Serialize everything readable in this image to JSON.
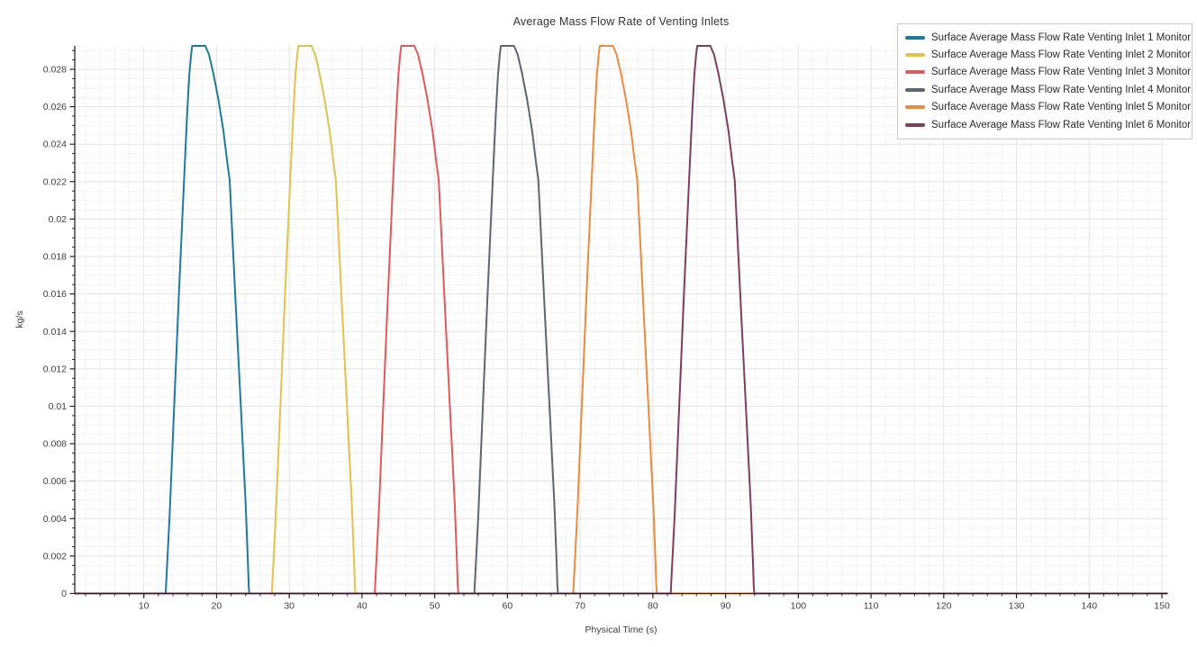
{
  "title": "Average Mass Flow Rate of Venting Inlets",
  "chart_data": {
    "type": "line",
    "title": "Average Mass Flow Rate of Venting Inlets",
    "xlabel": "Physical Time (s)",
    "ylabel": "kg/s",
    "xlim": [
      0.5,
      150.8
    ],
    "ylim": [
      0,
      0.02925
    ],
    "grid": true,
    "legend_position": "top-right",
    "x_major_ticks": [
      10,
      20,
      30,
      40,
      50,
      60,
      70,
      80,
      90,
      100,
      110,
      120,
      130,
      140,
      150
    ],
    "x_minor_step": 2,
    "y_tick_values": [
      0,
      0.002,
      0.004,
      0.006,
      0.008,
      0.01,
      0.012,
      0.014,
      0.016,
      0.018,
      0.02,
      0.022,
      0.024,
      0.026,
      0.028
    ],
    "y_tick_labels": [
      "0",
      "0.002",
      "0.004",
      "0.006",
      "0.008",
      "0.01",
      "0.012",
      "0.014",
      "0.016",
      "0.018",
      "0.02",
      "0.022",
      "0.024",
      "0.026",
      "0.028"
    ],
    "y_minor_step": 0.0005,
    "peak_kg_s": 0.02925,
    "pulse_profile": {
      "offsets_s": [
        0,
        0.55,
        1.15,
        1.8,
        2.45,
        2.95,
        3.25,
        3.5,
        3.65,
        5.45,
        5.95,
        6.55,
        7.25,
        7.95,
        8.45,
        8.8,
        9.6,
        10.4,
        11.0,
        11.3,
        11.42,
        11.5
      ],
      "values_kg_s": [
        0,
        0.0042,
        0.0098,
        0.0158,
        0.0214,
        0.0256,
        0.0277,
        0.0288,
        0.02925,
        0.02925,
        0.0288,
        0.0278,
        0.0264,
        0.0247,
        0.0231,
        0.0221,
        0.0157,
        0.0095,
        0.0048,
        0.0018,
        0.0004,
        0
      ]
    },
    "series": [
      {
        "name": "Surface Average Mass Flow Rate Venting Inlet 1 Monitor",
        "color": "#1f7a99",
        "start_s": 13.0,
        "end_s": 24.5
      },
      {
        "name": "Surface Average Mass Flow Rate Venting Inlet 2 Monitor",
        "color": "#e0c24c",
        "start_s": 27.6,
        "end_s": 39.1
      },
      {
        "name": "Surface Average Mass Flow Rate Venting Inlet 3 Monitor",
        "color": "#dc5a5a",
        "start_s": 41.75,
        "end_s": 53.25
      },
      {
        "name": "Surface Average Mass Flow Rate Venting Inlet 4 Monitor",
        "color": "#5b6673",
        "start_s": 55.45,
        "end_s": 66.95
      },
      {
        "name": "Surface Average Mass Flow Rate Venting Inlet 5 Monitor",
        "color": "#e68b40",
        "start_s": 69.05,
        "end_s": 80.55
      },
      {
        "name": "Surface Average Mass Flow Rate Venting Inlet 6 Monitor",
        "color": "#7b3e5e",
        "start_s": 82.45,
        "end_s": 93.95
      }
    ]
  },
  "style": {
    "background": "#ffffff",
    "axis_color": "#262626",
    "major_grid_color": "#e3e3e3",
    "minor_grid_color": "#f2f2f2",
    "tick_label_color": "#3d3d3d",
    "title_color": "#333333",
    "legend_border_color": "#c9c9c9",
    "line_width": 2
  }
}
